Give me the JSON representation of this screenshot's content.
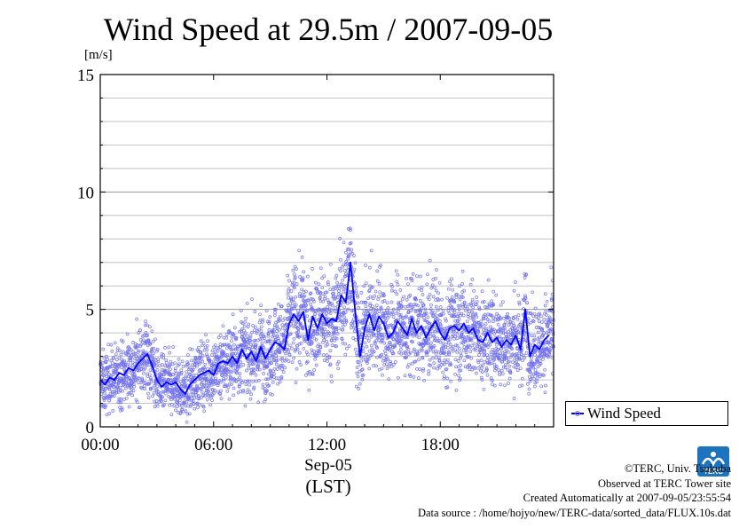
{
  "chart_data": {
    "type": "scatter",
    "title": "Wind Speed at 29.5m / 2007-09-05",
    "ylabel": "[m/s]",
    "xlabel_date": "Sep-05",
    "xlabel_unit": "(LST)",
    "x_unit": "hour",
    "xlim": [
      0,
      24
    ],
    "ylim": [
      0,
      15
    ],
    "x_ticks": [
      {
        "value": 0,
        "label": "00:00"
      },
      {
        "value": 6,
        "label": "06:00"
      },
      {
        "value": 12,
        "label": "12:00"
      },
      {
        "value": 18,
        "label": "18:00"
      }
    ],
    "y_ticks": [
      {
        "value": 0,
        "label": "0"
      },
      {
        "value": 5,
        "label": "5"
      },
      {
        "value": 10,
        "label": "10"
      },
      {
        "value": 15,
        "label": "15"
      }
    ],
    "grid": true,
    "legend_position": "bottom-right outside",
    "series": [
      {
        "name": "Wind Speed",
        "color": "#0000ff",
        "points_color": "#7070f0",
        "x": [
          0,
          0.25,
          0.5,
          0.75,
          1,
          1.25,
          1.5,
          1.75,
          2,
          2.25,
          2.5,
          2.75,
          3,
          3.25,
          3.5,
          3.75,
          4,
          4.25,
          4.5,
          4.75,
          5,
          5.25,
          5.5,
          5.75,
          6,
          6.25,
          6.5,
          6.75,
          7,
          7.25,
          7.5,
          7.75,
          8,
          8.25,
          8.5,
          8.75,
          9,
          9.25,
          9.5,
          9.75,
          10,
          10.25,
          10.5,
          10.75,
          11,
          11.25,
          11.5,
          11.75,
          12,
          12.25,
          12.5,
          12.75,
          13,
          13.25,
          13.5,
          13.75,
          14,
          14.25,
          14.5,
          14.75,
          15,
          15.25,
          15.5,
          15.75,
          16,
          16.25,
          16.5,
          16.75,
          17,
          17.25,
          17.5,
          17.75,
          18,
          18.25,
          18.5,
          18.75,
          19,
          19.25,
          19.5,
          19.75,
          20,
          20.25,
          20.5,
          20.75,
          21,
          21.25,
          21.5,
          21.75,
          22,
          22.25,
          22.5,
          22.75,
          23,
          23.25,
          23.5,
          23.75
        ],
        "values": [
          2.0,
          1.8,
          2.1,
          2.0,
          2.3,
          2.2,
          2.5,
          2.4,
          2.7,
          2.9,
          3.1,
          2.6,
          2.0,
          1.7,
          1.9,
          1.8,
          1.9,
          1.6,
          1.4,
          1.8,
          2.0,
          2.2,
          2.3,
          2.4,
          2.2,
          2.7,
          2.8,
          2.7,
          3.0,
          2.7,
          3.3,
          2.9,
          3.2,
          2.8,
          3.4,
          2.9,
          3.3,
          3.6,
          3.5,
          3.3,
          4.4,
          4.8,
          4.5,
          4.9,
          3.7,
          4.7,
          4.2,
          4.8,
          4.4,
          4.6,
          4.5,
          5.6,
          5.3,
          7.0,
          4.9,
          3.0,
          4.2,
          4.8,
          4.1,
          4.7,
          4.4,
          3.8,
          4.0,
          4.5,
          4.2,
          3.9,
          4.6,
          4.0,
          4.3,
          3.8,
          4.2,
          4.5,
          4.0,
          3.7,
          4.2,
          4.3,
          4.1,
          4.4,
          4.0,
          4.2,
          3.7,
          3.6,
          4.0,
          3.6,
          3.8,
          3.4,
          3.7,
          3.5,
          3.9,
          3.3,
          5.0,
          3.0,
          3.5,
          3.3,
          3.7,
          3.9
        ]
      }
    ]
  },
  "legend": {
    "label": "Wind Speed"
  },
  "footer": {
    "copyright": "©TERC, Univ. Tsukuba",
    "observed": "Observed at TERC Tower site",
    "created": "Created Automatically at 2007-09-05/23:55:54",
    "source": "Data source : /home/hojyo/new/TERC-data/sorted_data/FLUX.10s.dat"
  },
  "logo": {
    "text": "TERC",
    "color": "#1e73be"
  }
}
